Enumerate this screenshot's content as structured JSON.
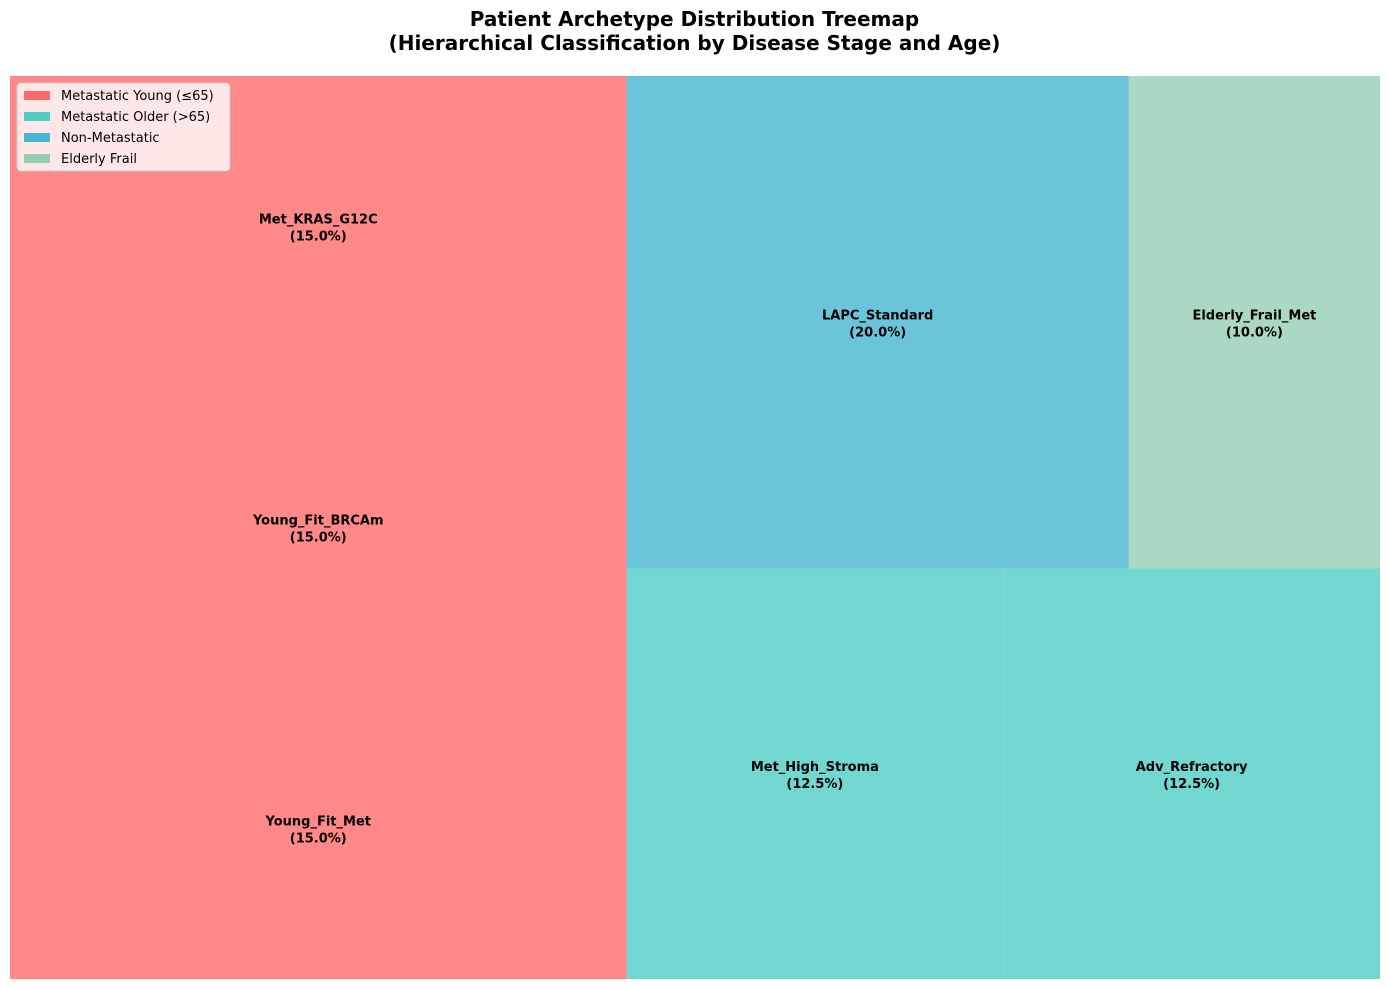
{
  "chart_data": {
    "type": "treemap",
    "title": "Patient Archetype Distribution Treemap",
    "subtitle": "(Hierarchical Classification by Disease Stage and Age)",
    "groups": [
      {
        "name": "Metastatic Young (≤65)",
        "color": "#FF6B6B"
      },
      {
        "name": "Metastatic Older (>65)",
        "color": "#4ECDC4"
      },
      {
        "name": "Non-Metastatic",
        "color": "#45B7D1"
      },
      {
        "name": "Elderly Frail",
        "color": "#96CEB4"
      }
    ],
    "tiles": [
      {
        "name": "Met_KRAS_G12C",
        "percent_label": "(15.0%)",
        "value": 15.0,
        "group": 0
      },
      {
        "name": "Young_Fit_BRCAm",
        "percent_label": "(15.0%)",
        "value": 15.0,
        "group": 0
      },
      {
        "name": "Young_Fit_Met",
        "percent_label": "(15.0%)",
        "value": 15.0,
        "group": 0
      },
      {
        "name": "LAPC_Standard",
        "percent_label": "(20.0%)",
        "value": 20.0,
        "group": 2
      },
      {
        "name": "Elderly_Frail_Met",
        "percent_label": "(10.0%)",
        "value": 10.0,
        "group": 3
      },
      {
        "name": "Met_High_Stroma",
        "percent_label": "(12.5%)",
        "value": 12.5,
        "group": 1
      },
      {
        "name": "Adv_Refractory",
        "percent_label": "(12.5%)",
        "value": 12.5,
        "group": 1
      }
    ],
    "legend_position": "upper-left"
  }
}
